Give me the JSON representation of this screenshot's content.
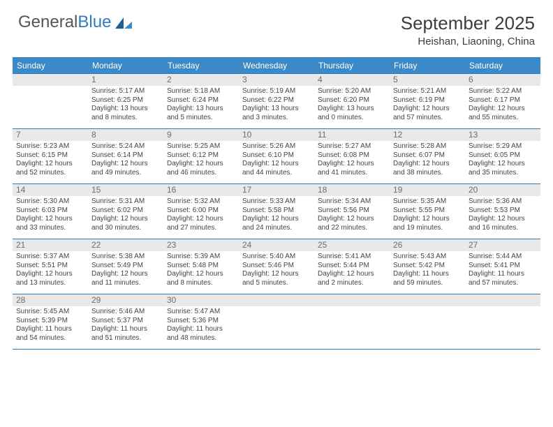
{
  "logo": {
    "word1": "General",
    "word2": "Blue"
  },
  "title": "September 2025",
  "subtitle": "Heishan, Liaoning, China",
  "colors": {
    "header_bg": "#3b89c7",
    "header_border": "#2f7bbf",
    "daynum_bg": "#e9e9e9",
    "daynum_text": "#6d6d6d",
    "body_text": "#444444",
    "title_text": "#3d3d3d",
    "logo_gray": "#555555",
    "logo_blue": "#2f7bbf",
    "page_bg": "#ffffff"
  },
  "typography": {
    "title_fontsize": 26,
    "subtitle_fontsize": 15,
    "weekday_fontsize": 12,
    "daynum_fontsize": 12,
    "cell_fontsize": 10
  },
  "weekdays": [
    "Sunday",
    "Monday",
    "Tuesday",
    "Wednesday",
    "Thursday",
    "Friday",
    "Saturday"
  ],
  "weeks": [
    [
      {
        "day": "",
        "sunrise": "",
        "sunset": "",
        "daylight1": "",
        "daylight2": ""
      },
      {
        "day": "1",
        "sunrise": "Sunrise: 5:17 AM",
        "sunset": "Sunset: 6:25 PM",
        "daylight1": "Daylight: 13 hours",
        "daylight2": "and 8 minutes."
      },
      {
        "day": "2",
        "sunrise": "Sunrise: 5:18 AM",
        "sunset": "Sunset: 6:24 PM",
        "daylight1": "Daylight: 13 hours",
        "daylight2": "and 5 minutes."
      },
      {
        "day": "3",
        "sunrise": "Sunrise: 5:19 AM",
        "sunset": "Sunset: 6:22 PM",
        "daylight1": "Daylight: 13 hours",
        "daylight2": "and 3 minutes."
      },
      {
        "day": "4",
        "sunrise": "Sunrise: 5:20 AM",
        "sunset": "Sunset: 6:20 PM",
        "daylight1": "Daylight: 13 hours",
        "daylight2": "and 0 minutes."
      },
      {
        "day": "5",
        "sunrise": "Sunrise: 5:21 AM",
        "sunset": "Sunset: 6:19 PM",
        "daylight1": "Daylight: 12 hours",
        "daylight2": "and 57 minutes."
      },
      {
        "day": "6",
        "sunrise": "Sunrise: 5:22 AM",
        "sunset": "Sunset: 6:17 PM",
        "daylight1": "Daylight: 12 hours",
        "daylight2": "and 55 minutes."
      }
    ],
    [
      {
        "day": "7",
        "sunrise": "Sunrise: 5:23 AM",
        "sunset": "Sunset: 6:15 PM",
        "daylight1": "Daylight: 12 hours",
        "daylight2": "and 52 minutes."
      },
      {
        "day": "8",
        "sunrise": "Sunrise: 5:24 AM",
        "sunset": "Sunset: 6:14 PM",
        "daylight1": "Daylight: 12 hours",
        "daylight2": "and 49 minutes."
      },
      {
        "day": "9",
        "sunrise": "Sunrise: 5:25 AM",
        "sunset": "Sunset: 6:12 PM",
        "daylight1": "Daylight: 12 hours",
        "daylight2": "and 46 minutes."
      },
      {
        "day": "10",
        "sunrise": "Sunrise: 5:26 AM",
        "sunset": "Sunset: 6:10 PM",
        "daylight1": "Daylight: 12 hours",
        "daylight2": "and 44 minutes."
      },
      {
        "day": "11",
        "sunrise": "Sunrise: 5:27 AM",
        "sunset": "Sunset: 6:08 PM",
        "daylight1": "Daylight: 12 hours",
        "daylight2": "and 41 minutes."
      },
      {
        "day": "12",
        "sunrise": "Sunrise: 5:28 AM",
        "sunset": "Sunset: 6:07 PM",
        "daylight1": "Daylight: 12 hours",
        "daylight2": "and 38 minutes."
      },
      {
        "day": "13",
        "sunrise": "Sunrise: 5:29 AM",
        "sunset": "Sunset: 6:05 PM",
        "daylight1": "Daylight: 12 hours",
        "daylight2": "and 35 minutes."
      }
    ],
    [
      {
        "day": "14",
        "sunrise": "Sunrise: 5:30 AM",
        "sunset": "Sunset: 6:03 PM",
        "daylight1": "Daylight: 12 hours",
        "daylight2": "and 33 minutes."
      },
      {
        "day": "15",
        "sunrise": "Sunrise: 5:31 AM",
        "sunset": "Sunset: 6:02 PM",
        "daylight1": "Daylight: 12 hours",
        "daylight2": "and 30 minutes."
      },
      {
        "day": "16",
        "sunrise": "Sunrise: 5:32 AM",
        "sunset": "Sunset: 6:00 PM",
        "daylight1": "Daylight: 12 hours",
        "daylight2": "and 27 minutes."
      },
      {
        "day": "17",
        "sunrise": "Sunrise: 5:33 AM",
        "sunset": "Sunset: 5:58 PM",
        "daylight1": "Daylight: 12 hours",
        "daylight2": "and 24 minutes."
      },
      {
        "day": "18",
        "sunrise": "Sunrise: 5:34 AM",
        "sunset": "Sunset: 5:56 PM",
        "daylight1": "Daylight: 12 hours",
        "daylight2": "and 22 minutes."
      },
      {
        "day": "19",
        "sunrise": "Sunrise: 5:35 AM",
        "sunset": "Sunset: 5:55 PM",
        "daylight1": "Daylight: 12 hours",
        "daylight2": "and 19 minutes."
      },
      {
        "day": "20",
        "sunrise": "Sunrise: 5:36 AM",
        "sunset": "Sunset: 5:53 PM",
        "daylight1": "Daylight: 12 hours",
        "daylight2": "and 16 minutes."
      }
    ],
    [
      {
        "day": "21",
        "sunrise": "Sunrise: 5:37 AM",
        "sunset": "Sunset: 5:51 PM",
        "daylight1": "Daylight: 12 hours",
        "daylight2": "and 13 minutes."
      },
      {
        "day": "22",
        "sunrise": "Sunrise: 5:38 AM",
        "sunset": "Sunset: 5:49 PM",
        "daylight1": "Daylight: 12 hours",
        "daylight2": "and 11 minutes."
      },
      {
        "day": "23",
        "sunrise": "Sunrise: 5:39 AM",
        "sunset": "Sunset: 5:48 PM",
        "daylight1": "Daylight: 12 hours",
        "daylight2": "and 8 minutes."
      },
      {
        "day": "24",
        "sunrise": "Sunrise: 5:40 AM",
        "sunset": "Sunset: 5:46 PM",
        "daylight1": "Daylight: 12 hours",
        "daylight2": "and 5 minutes."
      },
      {
        "day": "25",
        "sunrise": "Sunrise: 5:41 AM",
        "sunset": "Sunset: 5:44 PM",
        "daylight1": "Daylight: 12 hours",
        "daylight2": "and 2 minutes."
      },
      {
        "day": "26",
        "sunrise": "Sunrise: 5:43 AM",
        "sunset": "Sunset: 5:42 PM",
        "daylight1": "Daylight: 11 hours",
        "daylight2": "and 59 minutes."
      },
      {
        "day": "27",
        "sunrise": "Sunrise: 5:44 AM",
        "sunset": "Sunset: 5:41 PM",
        "daylight1": "Daylight: 11 hours",
        "daylight2": "and 57 minutes."
      }
    ],
    [
      {
        "day": "28",
        "sunrise": "Sunrise: 5:45 AM",
        "sunset": "Sunset: 5:39 PM",
        "daylight1": "Daylight: 11 hours",
        "daylight2": "and 54 minutes."
      },
      {
        "day": "29",
        "sunrise": "Sunrise: 5:46 AM",
        "sunset": "Sunset: 5:37 PM",
        "daylight1": "Daylight: 11 hours",
        "daylight2": "and 51 minutes."
      },
      {
        "day": "30",
        "sunrise": "Sunrise: 5:47 AM",
        "sunset": "Sunset: 5:36 PM",
        "daylight1": "Daylight: 11 hours",
        "daylight2": "and 48 minutes."
      },
      {
        "day": "",
        "sunrise": "",
        "sunset": "",
        "daylight1": "",
        "daylight2": ""
      },
      {
        "day": "",
        "sunrise": "",
        "sunset": "",
        "daylight1": "",
        "daylight2": ""
      },
      {
        "day": "",
        "sunrise": "",
        "sunset": "",
        "daylight1": "",
        "daylight2": ""
      },
      {
        "day": "",
        "sunrise": "",
        "sunset": "",
        "daylight1": "",
        "daylight2": ""
      }
    ]
  ]
}
